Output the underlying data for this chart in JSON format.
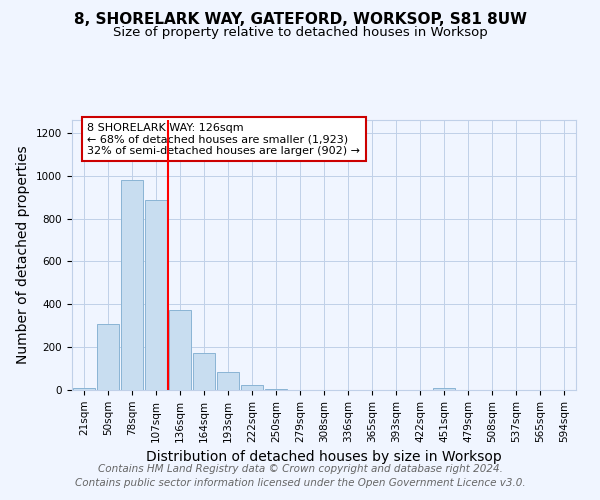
{
  "title_line1": "8, SHORELARK WAY, GATEFORD, WORKSOP, S81 8UW",
  "title_line2": "Size of property relative to detached houses in Worksop",
  "xlabel": "Distribution of detached houses by size in Worksop",
  "ylabel": "Number of detached properties",
  "categories": [
    "21sqm",
    "50sqm",
    "78sqm",
    "107sqm",
    "136sqm",
    "164sqm",
    "193sqm",
    "222sqm",
    "250sqm",
    "279sqm",
    "308sqm",
    "336sqm",
    "365sqm",
    "393sqm",
    "422sqm",
    "451sqm",
    "479sqm",
    "508sqm",
    "537sqm",
    "565sqm",
    "594sqm"
  ],
  "values": [
    10,
    310,
    980,
    885,
    375,
    175,
    85,
    22,
    5,
    2,
    2,
    2,
    2,
    2,
    0,
    10,
    0,
    0,
    0,
    0,
    0
  ],
  "bar_color": "#c8ddf0",
  "bar_edge_color": "#8ab4d4",
  "red_line_x": 3.5,
  "annotation_text": "8 SHORELARK WAY: 126sqm\n← 68% of detached houses are smaller (1,923)\n32% of semi-detached houses are larger (902) →",
  "annotation_box_color": "#ffffff",
  "annotation_box_edge_color": "#cc0000",
  "ylim": [
    0,
    1260
  ],
  "yticks": [
    0,
    200,
    400,
    600,
    800,
    1000,
    1200
  ],
  "footer_line1": "Contains HM Land Registry data © Crown copyright and database right 2024.",
  "footer_line2": "Contains public sector information licensed under the Open Government Licence v3.0.",
  "bg_color": "#f0f5ff",
  "grid_color": "#c0d0e8",
  "title_fontsize": 11,
  "subtitle_fontsize": 9.5,
  "axis_label_fontsize": 10,
  "tick_fontsize": 7.5,
  "footer_fontsize": 7.5
}
